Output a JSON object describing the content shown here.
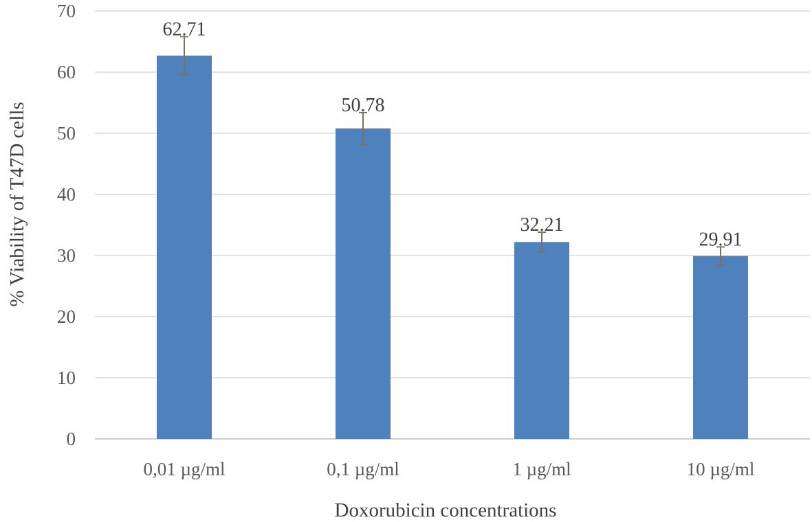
{
  "chart_data": {
    "type": "bar",
    "categories": [
      "0,01 µg/ml",
      "0,1 µg/ml",
      "1 µg/ml",
      "10 µg/ml"
    ],
    "values": [
      62.71,
      50.78,
      32.21,
      29.91
    ],
    "data_labels": [
      "62.71",
      "50.78",
      "32.21",
      "29.91"
    ],
    "error": [
      3.1,
      2.6,
      1.6,
      1.5
    ],
    "title": "",
    "xlabel": "Doxorubicin concentrations",
    "ylabel": "% Viability of T47D cells",
    "ylim": [
      0,
      70
    ],
    "yticks": [
      0,
      10,
      20,
      30,
      40,
      50,
      60,
      70
    ],
    "grid": true,
    "bar_color": "#4f81bd",
    "error_color": "#7f6f5f"
  }
}
